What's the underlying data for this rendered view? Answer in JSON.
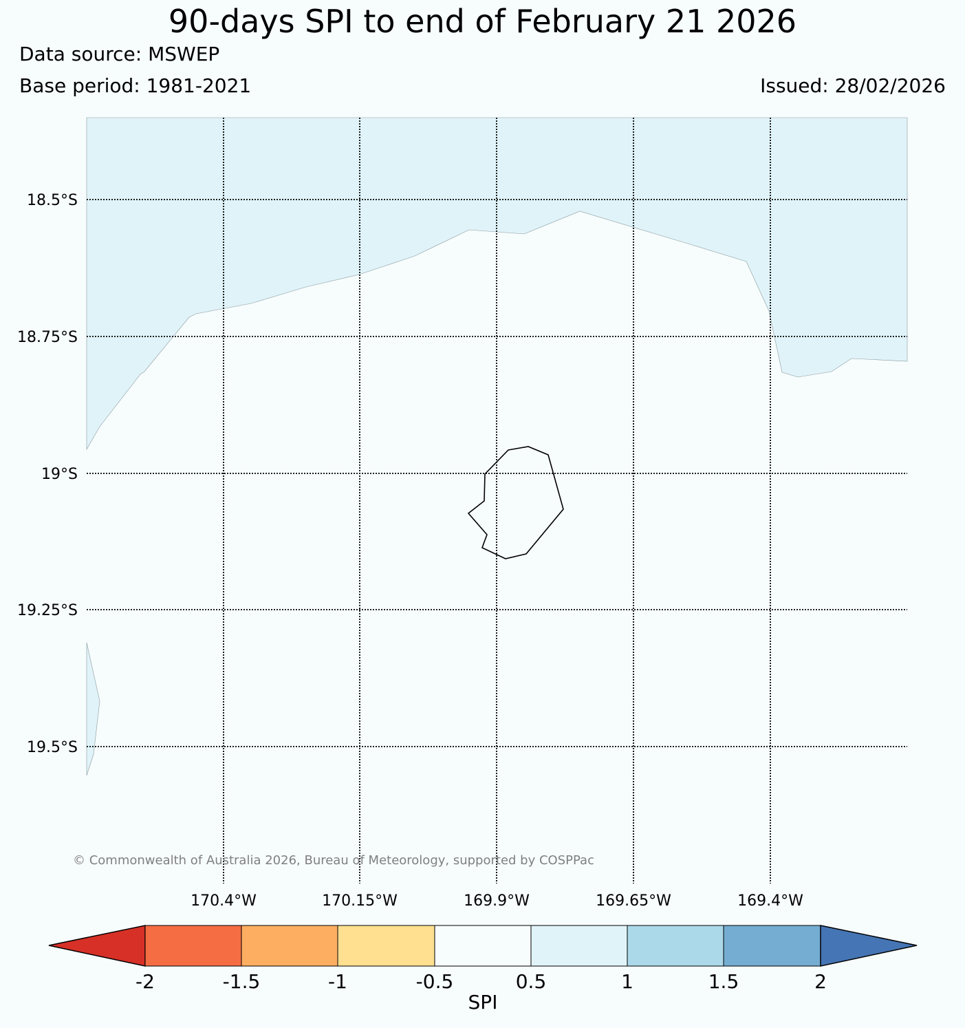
{
  "title": "90-days SPI to end of February 21 2026",
  "data_source": "Data source: MSWEP",
  "base_period": "Base period: 1981-2021",
  "issued": "Issued: 28/02/2026",
  "map": {
    "lat_labels": [
      "18.5°S",
      "18.75°S",
      "19°S",
      "19.25°S",
      "19.5°S"
    ],
    "lon_labels": [
      "170.4°W",
      "170.15°W",
      "169.9°W",
      "169.65°W",
      "169.4°W"
    ],
    "copyright": "© Commonwealth of Australia 2026, Bureau of Meteorology, supported by COSPPac",
    "colors": {
      "background": "#f7fcfd",
      "wet_area": "#e0f3f8",
      "coast": "#000000",
      "grid": "#000000"
    }
  },
  "colorbar": {
    "label": "SPI",
    "ticks": [
      "-2",
      "-1.5",
      "-1",
      "-0.5",
      "0.5",
      "1",
      "1.5",
      "2"
    ],
    "colors": [
      "#d73027",
      "#f46d43",
      "#fdae61",
      "#fee090",
      "#f7fcfd",
      "#e0f3f8",
      "#abd9e9",
      "#74add1",
      "#4575b4"
    ]
  }
}
